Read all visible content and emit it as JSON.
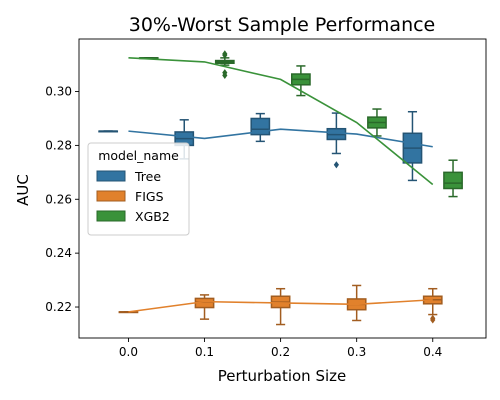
{
  "chart_data": {
    "type": "box",
    "title": "30%-Worst Sample Performance",
    "xlabel": "Perturbation Size",
    "ylabel": "AUC",
    "x_ticks": [
      "0.0",
      "0.1",
      "0.2",
      "0.3",
      "0.4"
    ],
    "y_ticks": [
      "0.22",
      "0.24",
      "0.26",
      "0.28",
      "0.30"
    ],
    "xlim": [
      -0.065,
      0.47
    ],
    "ylim": [
      0.2085,
      0.3195
    ],
    "grid": false,
    "legend": {
      "title": "model_name",
      "position": "center-left"
    },
    "series": [
      {
        "name": "Tree",
        "color": "#3274a1",
        "line": [
          [
            0.0,
            0.2853
          ],
          [
            0.1,
            0.2826
          ],
          [
            0.2,
            0.286
          ],
          [
            0.3,
            0.2842
          ],
          [
            0.4,
            0.2795
          ]
        ],
        "boxes": [
          {
            "x": 0.0,
            "whislo": 0.2853,
            "q1": 0.2853,
            "med": 0.2853,
            "q3": 0.2853,
            "whishi": 0.2853,
            "fliers": []
          },
          {
            "x": 0.1,
            "whislo": 0.275,
            "q1": 0.28,
            "med": 0.2825,
            "q3": 0.285,
            "whishi": 0.2895,
            "fliers": []
          },
          {
            "x": 0.2,
            "whislo": 0.2815,
            "q1": 0.284,
            "med": 0.286,
            "q3": 0.29,
            "whishi": 0.2918,
            "fliers": []
          },
          {
            "x": 0.3,
            "whislo": 0.277,
            "q1": 0.2822,
            "med": 0.284,
            "q3": 0.2862,
            "whishi": 0.292,
            "fliers": [
              0.2728
            ]
          },
          {
            "x": 0.4,
            "whislo": 0.267,
            "q1": 0.2735,
            "med": 0.279,
            "q3": 0.2845,
            "whishi": 0.2925,
            "fliers": []
          }
        ]
      },
      {
        "name": "FIGS",
        "color": "#e1812c",
        "line": [
          [
            0.0,
            0.2182
          ],
          [
            0.1,
            0.222
          ],
          [
            0.2,
            0.2215
          ],
          [
            0.3,
            0.221
          ],
          [
            0.4,
            0.2227
          ]
        ],
        "boxes": [
          {
            "x": 0.0,
            "whislo": 0.2182,
            "q1": 0.2182,
            "med": 0.2182,
            "q3": 0.2182,
            "whishi": 0.2182,
            "fliers": []
          },
          {
            "x": 0.1,
            "whislo": 0.2155,
            "q1": 0.2198,
            "med": 0.2218,
            "q3": 0.2232,
            "whishi": 0.2245,
            "fliers": []
          },
          {
            "x": 0.2,
            "whislo": 0.2135,
            "q1": 0.2198,
            "med": 0.2218,
            "q3": 0.224,
            "whishi": 0.2268,
            "fliers": []
          },
          {
            "x": 0.3,
            "whislo": 0.215,
            "q1": 0.219,
            "med": 0.221,
            "q3": 0.223,
            "whishi": 0.228,
            "fliers": []
          },
          {
            "x": 0.4,
            "whislo": 0.2172,
            "q1": 0.2212,
            "med": 0.2227,
            "q3": 0.224,
            "whishi": 0.2268,
            "fliers": [
              0.2158,
              0.2152
            ]
          }
        ]
      },
      {
        "name": "XGB2",
        "color": "#3a923a",
        "line": [
          [
            0.0,
            0.3125
          ],
          [
            0.1,
            0.311
          ],
          [
            0.2,
            0.3045
          ],
          [
            0.3,
            0.2885
          ],
          [
            0.4,
            0.2655
          ]
        ],
        "boxes": [
          {
            "x": 0.0,
            "whislo": 0.3125,
            "q1": 0.3125,
            "med": 0.3125,
            "q3": 0.3125,
            "whishi": 0.3125,
            "fliers": []
          },
          {
            "x": 0.1,
            "whislo": 0.3098,
            "q1": 0.3105,
            "med": 0.311,
            "q3": 0.3115,
            "whishi": 0.3125,
            "fliers": [
              0.3135,
              0.314,
              0.307,
              0.306
            ]
          },
          {
            "x": 0.2,
            "whislo": 0.2985,
            "q1": 0.3025,
            "med": 0.3045,
            "q3": 0.3065,
            "whishi": 0.3095,
            "fliers": []
          },
          {
            "x": 0.3,
            "whislo": 0.2835,
            "q1": 0.2865,
            "med": 0.2885,
            "q3": 0.2905,
            "whishi": 0.2935,
            "fliers": []
          },
          {
            "x": 0.4,
            "whislo": 0.261,
            "q1": 0.264,
            "med": 0.266,
            "q3": 0.27,
            "whishi": 0.2745,
            "fliers": []
          }
        ]
      }
    ]
  }
}
